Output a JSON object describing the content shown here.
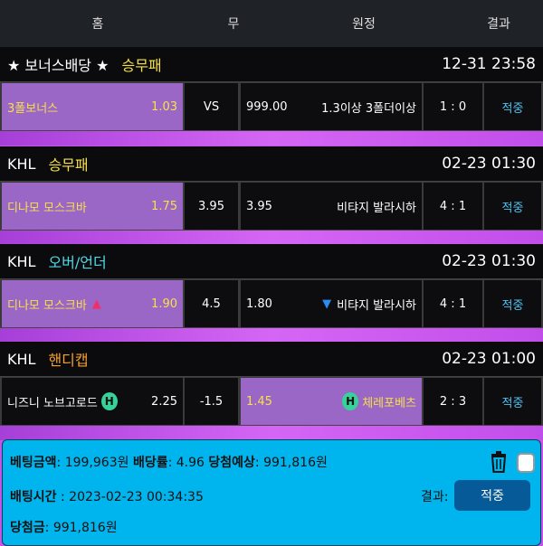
{
  "header": {
    "home": "홈",
    "draw": "무",
    "away": "원정",
    "result": "결과"
  },
  "sections": [
    {
      "league": "★ 보너스배당 ★",
      "market": "승무패",
      "market_color": "#f5e04a",
      "time": "12-31 23:58",
      "home": "3폴보너스",
      "home_odd": "1.03",
      "draw": "VS",
      "away_odd": "999.00",
      "away": "1.3이상 3폴더이상",
      "score": "1 : 0",
      "result": "적중"
    },
    {
      "league": "KHL",
      "market": "승무패",
      "market_color": "#f5e04a",
      "time": "02-23 01:30",
      "home": "디나모 모스크바",
      "home_odd": "1.75",
      "draw": "3.95",
      "away_odd": "3.95",
      "away": "비탸지 발라시하",
      "score": "4 : 1",
      "result": "적중"
    },
    {
      "league": "KHL",
      "market": "오버/언더",
      "market_color": "#4fd8e8",
      "time": "02-23 01:30",
      "home": "디나모 모스크바",
      "home_odd": "1.90",
      "draw": "4.5",
      "away_odd": "1.80",
      "away": "비탸지 발라시하",
      "score": "4 : 1",
      "result": "적중"
    },
    {
      "league": "KHL",
      "market": "핸디캡",
      "market_color": "#f5a030",
      "time": "02-23 01:00",
      "home": "니즈니 노브고로드",
      "home_odd": "2.25",
      "draw": "-1.5",
      "away_odd": "1.45",
      "away": "체레포베츠",
      "score": "2 : 3",
      "result": "적중",
      "home_badge": "H",
      "away_badge": "H"
    }
  ],
  "summary": {
    "bet_label": "베팅금액",
    "bet": "199,963원",
    "odds_label": "배당률",
    "odds": "4.96",
    "expected_label": "당첨예상",
    "expected": "991,816원",
    "time_label": "배팅시간",
    "time": "2023-02-23 00:34:35",
    "result_label": "결과:",
    "result": "적중",
    "win_label": "당첨금",
    "win": "991,816원"
  }
}
